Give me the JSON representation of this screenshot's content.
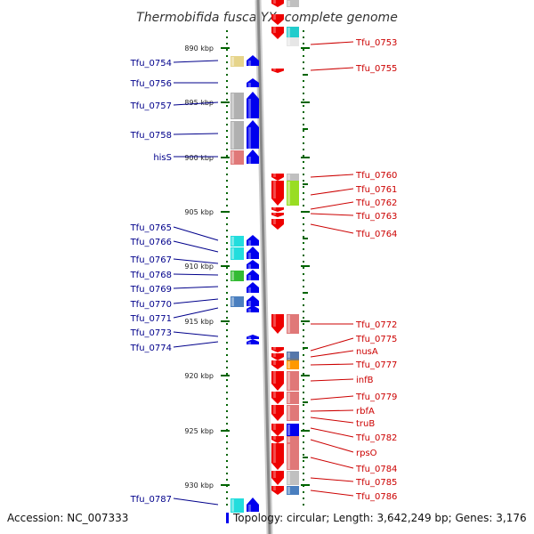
{
  "title": "Thermobifida fusca YX, complete genome",
  "footer": {
    "accession": "Accession: NC_007333",
    "info": "Topology: circular; Length: 3,642,249 bp; Genes: 3,176"
  },
  "colors": {
    "left_label": "#00008b",
    "right_label": "#cc0000",
    "backbone": "#888888",
    "scale": "#006400",
    "forward_arrow": "#0000ee",
    "reverse_arrow": "#ee0000"
  },
  "scale": {
    "ticks": [
      "890 kbp",
      "895 kbp",
      "900 kbp",
      "905 kbp",
      "910 kbp",
      "915 kbp",
      "920 kbp",
      "925 kbp",
      "930 kbp"
    ]
  },
  "left_genes": [
    {
      "name": "Tfu_0754",
      "color": "#e6d48a"
    },
    {
      "name": "Tfu_0756",
      "color": "#ffffff"
    },
    {
      "name": "Tfu_0757",
      "color": "#b0b0b0"
    },
    {
      "name": "Tfu_0758",
      "color": "#b0b0b0"
    },
    {
      "name": "hisS",
      "color": "#e07878"
    },
    {
      "name": "Tfu_0765",
      "color": "#22dddd"
    },
    {
      "name": "Tfu_0766",
      "color": "#22dddd"
    },
    {
      "name": "Tfu_0767",
      "color": "#ffffff"
    },
    {
      "name": "Tfu_0768",
      "color": "#33bb33"
    },
    {
      "name": "Tfu_0769",
      "color": "#ffffff"
    },
    {
      "name": "Tfu_0770",
      "color": "#4a7fbf"
    },
    {
      "name": "Tfu_0771",
      "color": "#ffffff"
    },
    {
      "name": "Tfu_0773",
      "color": "#ffffff"
    },
    {
      "name": "Tfu_0774",
      "color": "#ffffff"
    },
    {
      "name": "Tfu_0787",
      "color": "#22dddd"
    }
  ],
  "right_genes": [
    {
      "name": "Tfu_0753",
      "color": "#22cccc"
    },
    {
      "name": "Tfu_0755",
      "color": "#ffffff"
    },
    {
      "name": "Tfu_0760",
      "color": "#c0c0c0"
    },
    {
      "name": "Tfu_0761",
      "color": "#99dd22"
    },
    {
      "name": "Tfu_0762",
      "color": "#ffffff"
    },
    {
      "name": "Tfu_0763",
      "color": "#ffffff"
    },
    {
      "name": "Tfu_0764",
      "color": "#ffffff"
    },
    {
      "name": "Tfu_0772",
      "color": "#e07878"
    },
    {
      "name": "Tfu_0775",
      "color": "#ffffff"
    },
    {
      "name": "nusA",
      "color": "#777777"
    },
    {
      "name": "Tfu_0777",
      "color": "#ff9900"
    },
    {
      "name": "infB",
      "color": "#e07878"
    },
    {
      "name": "Tfu_0779",
      "color": "#e07878"
    },
    {
      "name": "rbfA",
      "color": "#e07878"
    },
    {
      "name": "truB",
      "color": "#e07878"
    },
    {
      "name": "Tfu_0782",
      "color": "#0000ee"
    },
    {
      "name": "rpsO",
      "color": "#e07878"
    },
    {
      "name": "Tfu_0784",
      "color": "#e07878"
    },
    {
      "name": "Tfu_0785",
      "color": "#c0c0c0"
    },
    {
      "name": "Tfu_0786",
      "color": "#4a7fbf"
    }
  ]
}
